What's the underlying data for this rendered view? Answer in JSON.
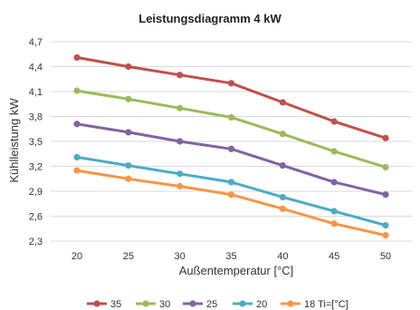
{
  "chart_data": {
    "type": "line",
    "title": "Leistungsdiagramm 4 kW",
    "xlabel": "Außentemperatur [°C]",
    "ylabel": "Kühlleistung kW",
    "x": [
      20,
      25,
      30,
      35,
      40,
      45,
      50
    ],
    "x_tick_labels": [
      "20",
      "25",
      "30",
      "35",
      "40",
      "45",
      "50"
    ],
    "ylim": [
      2.3,
      4.7
    ],
    "y_ticks": [
      2.3,
      2.6,
      2.9,
      3.2,
      3.5,
      3.8,
      4.1,
      4.4,
      4.7
    ],
    "y_tick_labels": [
      "2,3",
      "2,6",
      "2,9",
      "3,2",
      "3,5",
      "3,8",
      "4,1",
      "4,4",
      "4,7"
    ],
    "grid": "horizontal",
    "legend_position": "bottom",
    "series": [
      {
        "name": "35",
        "color": "#c0504d",
        "values": [
          4.51,
          4.4,
          4.3,
          4.2,
          3.97,
          3.74,
          3.54
        ]
      },
      {
        "name": "30",
        "color": "#9bbb59",
        "values": [
          4.11,
          4.01,
          3.9,
          3.79,
          3.59,
          3.38,
          3.19
        ]
      },
      {
        "name": "25",
        "color": "#8064a2",
        "values": [
          3.71,
          3.61,
          3.5,
          3.41,
          3.21,
          3.01,
          2.86
        ]
      },
      {
        "name": "20",
        "color": "#4bacc6",
        "values": [
          3.31,
          3.21,
          3.11,
          3.01,
          2.83,
          2.66,
          2.49
        ]
      },
      {
        "name": "18 Ti=[°C]",
        "color": "#f79646",
        "values": [
          3.15,
          3.05,
          2.96,
          2.86,
          2.69,
          2.51,
          2.37
        ]
      }
    ]
  }
}
